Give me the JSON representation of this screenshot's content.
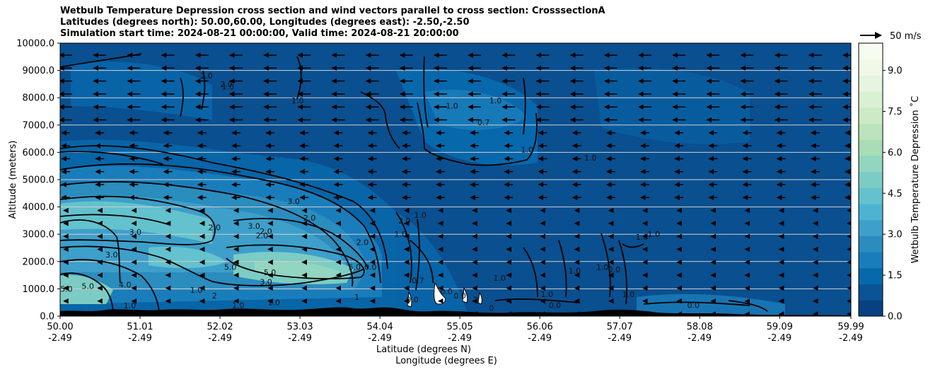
{
  "chart_data": {
    "type": "contour",
    "title_lines": [
      "Wetbulb Temperature Depression cross section and wind vectors parallel to cross section: CrosssectionA",
      "Latitudes (degrees north): 50.00,60.00, Longitudes (degrees east): -2.50,-2.50",
      "Simulation start time: 2024-08-21 00:00:00, Valid time: 2024-08-21 20:00:00"
    ],
    "ylabel": "Altitude (meters)",
    "xlabel_line1": "Latitude (degrees N)",
    "xlabel_line2": "Longitude (degrees E)",
    "ylim": [
      0,
      10000
    ],
    "xlim": [
      50.0,
      59.99
    ],
    "y_ticks": [
      {
        "value": 0,
        "label": "0.0"
      },
      {
        "value": 1000,
        "label": "1000.0"
      },
      {
        "value": 2000,
        "label": "2000.0"
      },
      {
        "value": 3000,
        "label": "3000.0"
      },
      {
        "value": 4000,
        "label": "4000.0"
      },
      {
        "value": 5000,
        "label": "5000.0"
      },
      {
        "value": 6000,
        "label": "6000.0"
      },
      {
        "value": 7000,
        "label": "7000.0"
      },
      {
        "value": 8000,
        "label": "8000.0"
      },
      {
        "value": 9000,
        "label": "9000.0"
      },
      {
        "value": 10000,
        "label": "10000.0"
      }
    ],
    "x_ticks": [
      {
        "value": 50.0,
        "lat": "50.00",
        "lon": "-2.49"
      },
      {
        "value": 51.01,
        "lat": "51.01",
        "lon": "-2.49"
      },
      {
        "value": 52.02,
        "lat": "52.02",
        "lon": "-2.49"
      },
      {
        "value": 53.03,
        "lat": "53.03",
        "lon": "-2.49"
      },
      {
        "value": 54.04,
        "lat": "54.04",
        "lon": "-2.49"
      },
      {
        "value": 55.05,
        "lat": "55.05",
        "lon": "-2.49"
      },
      {
        "value": 56.06,
        "lat": "56.06",
        "lon": "-2.49"
      },
      {
        "value": 57.07,
        "lat": "57.07",
        "lon": "-2.49"
      },
      {
        "value": 58.08,
        "lat": "58.08",
        "lon": "-2.49"
      },
      {
        "value": 59.09,
        "lat": "59.09",
        "lon": "-2.49"
      },
      {
        "value": 59.99,
        "lat": "59.99",
        "lon": "-2.49"
      }
    ],
    "grid": "horizontal",
    "colorbar": {
      "label": "Wetbulb Temperature Depression ˚C",
      "min": 0.0,
      "max": 10.0,
      "ticks": [
        {
          "value": 0.0,
          "label": "0.0"
        },
        {
          "value": 1.5,
          "label": "1.5"
        },
        {
          "value": 3.0,
          "label": "3.0"
        },
        {
          "value": 4.5,
          "label": "4.5"
        },
        {
          "value": 6.0,
          "label": "6.0"
        },
        {
          "value": 7.5,
          "label": "7.5"
        },
        {
          "value": 9.0,
          "label": "9.0"
        }
      ],
      "colors": [
        "#084081",
        "#0a5394",
        "#0868ac",
        "#1a7dbb",
        "#2b8cbe",
        "#3d9fca",
        "#4eb3d3",
        "#63c2cd",
        "#7bccc4",
        "#92d5c0",
        "#a8ddb5",
        "#bbe4bc",
        "#ccebc5",
        "#d9f0d3",
        "#e5f5e0",
        "#f0f9e8",
        "#f7fcf0"
      ]
    },
    "wind_key": {
      "label": "50 m/s",
      "value": 50
    },
    "contour_labels": [
      {
        "lat": 50.95,
        "alt": 2980,
        "text": "3.0"
      },
      {
        "lat": 50.65,
        "alt": 2150,
        "text": "3.0"
      },
      {
        "lat": 50.35,
        "alt": 1000,
        "text": "5.0"
      },
      {
        "lat": 50.08,
        "alt": 900,
        "text": "5.0"
      },
      {
        "lat": 50.82,
        "alt": 1050,
        "text": "4.0"
      },
      {
        "lat": 50.88,
        "alt": 280,
        "text": "1.0"
      },
      {
        "lat": 51.85,
        "alt": 8700,
        "text": "2.0"
      },
      {
        "lat": 52.1,
        "alt": 8400,
        "text": "2.0"
      },
      {
        "lat": 52.12,
        "alt": 8300,
        "text": "1.0"
      },
      {
        "lat": 53.0,
        "alt": 7800,
        "text": "1.0"
      },
      {
        "lat": 52.45,
        "alt": 3200,
        "text": "3.0"
      },
      {
        "lat": 51.95,
        "alt": 3150,
        "text": "2.0"
      },
      {
        "lat": 52.6,
        "alt": 3000,
        "text": "2.0"
      },
      {
        "lat": 52.55,
        "alt": 2850,
        "text": "2.0"
      },
      {
        "lat": 52.15,
        "alt": 1700,
        "text": "5.0"
      },
      {
        "lat": 52.65,
        "alt": 1500,
        "text": "5.0"
      },
      {
        "lat": 52.6,
        "alt": 1150,
        "text": "3.0"
      },
      {
        "lat": 51.72,
        "alt": 850,
        "text": "1.0"
      },
      {
        "lat": 51.95,
        "alt": 650,
        "text": "2"
      },
      {
        "lat": 52.25,
        "alt": 300,
        "text": "1.0"
      },
      {
        "lat": 52.7,
        "alt": 400,
        "text": "1.0"
      },
      {
        "lat": 52.95,
        "alt": 4100,
        "text": "3.0"
      },
      {
        "lat": 53.15,
        "alt": 3500,
        "text": "2.0"
      },
      {
        "lat": 53.82,
        "alt": 2600,
        "text": "2.0"
      },
      {
        "lat": 53.72,
        "alt": 1700,
        "text": "5.0"
      },
      {
        "lat": 53.92,
        "alt": 1700,
        "text": "0.0"
      },
      {
        "lat": 53.75,
        "alt": 600,
        "text": "1"
      },
      {
        "lat": 54.35,
        "alt": 3400,
        "text": "2.0"
      },
      {
        "lat": 54.55,
        "alt": 3600,
        "text": "1.0"
      },
      {
        "lat": 54.3,
        "alt": 2900,
        "text": "1.0"
      },
      {
        "lat": 54.52,
        "alt": 1200,
        "text": "0.7"
      },
      {
        "lat": 54.45,
        "alt": 500,
        "text": "0.0"
      },
      {
        "lat": 54.88,
        "alt": 800,
        "text": "0.0"
      },
      {
        "lat": 55.05,
        "alt": 650,
        "text": "0.0"
      },
      {
        "lat": 55.25,
        "alt": 500,
        "text": "2"
      },
      {
        "lat": 55.55,
        "alt": 1300,
        "text": "1.0"
      },
      {
        "lat": 55.45,
        "alt": 200,
        "text": "0"
      },
      {
        "lat": 54.95,
        "alt": 7600,
        "text": "1.0"
      },
      {
        "lat": 55.35,
        "alt": 7000,
        "text": "0.7"
      },
      {
        "lat": 55.5,
        "alt": 7800,
        "text": "1.0"
      },
      {
        "lat": 55.9,
        "alt": 6000,
        "text": "1.0"
      },
      {
        "lat": 56.7,
        "alt": 5700,
        "text": "1.0"
      },
      {
        "lat": 56.5,
        "alt": 1550,
        "text": "1.0"
      },
      {
        "lat": 56.85,
        "alt": 1700,
        "text": "1.0"
      },
      {
        "lat": 56.15,
        "alt": 700,
        "text": "1.0"
      },
      {
        "lat": 56.25,
        "alt": 300,
        "text": "0.0"
      },
      {
        "lat": 57.0,
        "alt": 1600,
        "text": "0.0"
      },
      {
        "lat": 57.18,
        "alt": 700,
        "text": "1.0"
      },
      {
        "lat": 57.35,
        "alt": 2800,
        "text": "1.0"
      },
      {
        "lat": 57.5,
        "alt": 2900,
        "text": "1.0"
      },
      {
        "lat": 58.0,
        "alt": 300,
        "text": "0.0"
      }
    ]
  }
}
